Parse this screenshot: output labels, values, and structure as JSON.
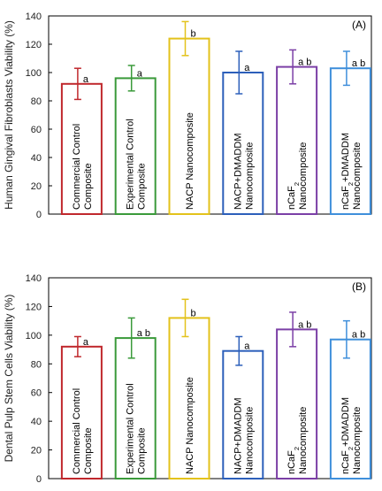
{
  "chart_data": [
    {
      "type": "bar",
      "panel_label": "(A)",
      "ylabel": "Human Gingival Fibroblasts Viability (%)",
      "ylim": [
        0,
        140
      ],
      "yticks": [
        0,
        20,
        40,
        60,
        80,
        100,
        120,
        140
      ],
      "grid": false,
      "categories": [
        {
          "lines": [
            "Commercial Control",
            "Composite"
          ]
        },
        {
          "lines": [
            "Experimental Control",
            "Composite"
          ]
        },
        {
          "lines": [
            "NACP Nanocomposite"
          ]
        },
        {
          "lines": [
            "NACP+DMADDM",
            "Nanocomposite"
          ]
        },
        {
          "lines": [
            "nCaF₂",
            "Nanocomposite"
          ]
        },
        {
          "lines": [
            "nCaF₂+DMADDM",
            "Nanocomposite"
          ]
        }
      ],
      "values": [
        92,
        96,
        124,
        100,
        104,
        103
      ],
      "errors": [
        11,
        9,
        12,
        15,
        12,
        12
      ],
      "significance": [
        "a",
        "a",
        "b",
        "a",
        "a b",
        "a b"
      ],
      "colors": [
        "#c0282d",
        "#3a9a3a",
        "#e3c21b",
        "#2c5fba",
        "#7b3fa6",
        "#3f8fdb"
      ]
    },
    {
      "type": "bar",
      "panel_label": "(B)",
      "ylabel": "Dental Pulp Stem Cells Viability (%)",
      "ylim": [
        0,
        140
      ],
      "yticks": [
        0,
        20,
        40,
        60,
        80,
        100,
        120,
        140
      ],
      "grid": false,
      "categories": [
        {
          "lines": [
            "Commercial Control",
            "Composite"
          ]
        },
        {
          "lines": [
            "Experimental Control",
            "Composite"
          ]
        },
        {
          "lines": [
            "NACP Nanocomposite"
          ]
        },
        {
          "lines": [
            "NACP+DMADDM",
            "Nanocomposite"
          ]
        },
        {
          "lines": [
            "nCaF₂",
            "Nanocomposite"
          ]
        },
        {
          "lines": [
            "nCaF₂+DMADDM",
            "Nanocomposite"
          ]
        }
      ],
      "values": [
        92,
        98,
        112,
        89,
        104,
        97
      ],
      "errors": [
        7,
        14,
        13,
        10,
        12,
        13
      ],
      "significance": [
        "a",
        "a b",
        "b",
        "a",
        "a b",
        "a b"
      ],
      "colors": [
        "#c0282d",
        "#3a9a3a",
        "#e3c21b",
        "#2c5fba",
        "#7b3fa6",
        "#3f8fdb"
      ]
    }
  ]
}
